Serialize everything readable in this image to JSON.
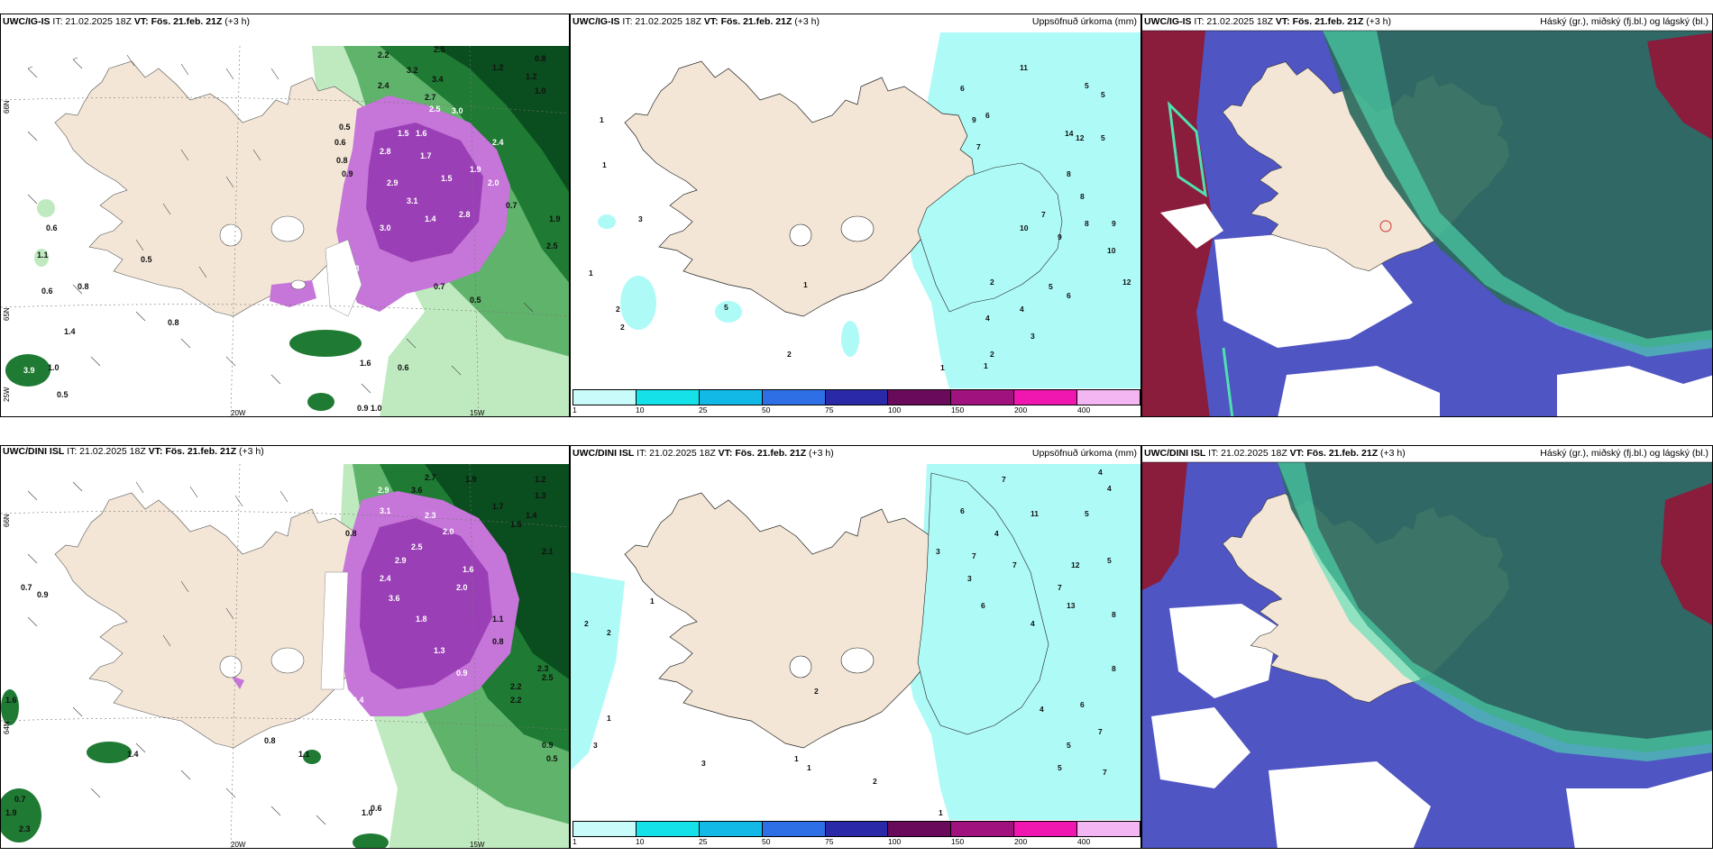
{
  "colors": {
    "land": "#f3e6d6",
    "sea": "#ffffff",
    "precip_light": "#aefaf7",
    "green_1": "#bfeabf",
    "green_2": "#5fb36a",
    "green_3": "#1f7a33",
    "green_4": "#0a4d1e",
    "magenta_1": "#c675d9",
    "magenta_2": "#9a3fb5",
    "cloud_high": "#2e6a5e",
    "cloud_mid": "#4f55c2",
    "cloud_low": "#8a1c3c",
    "cloud_edge": "#4fe0b0"
  },
  "colorbar": {
    "ticks": [
      "1",
      "10",
      "25",
      "50",
      "75",
      "100",
      "150",
      "200",
      "400"
    ],
    "colors": [
      "#c8fbf9",
      "#14e2e8",
      "#12b8e6",
      "#2f6fe6",
      "#2a2aa8",
      "#6a0a5a",
      "#a0127e",
      "#f016b0",
      "#f4b6f2"
    ]
  },
  "axes": {
    "lon_20": "20W",
    "lon_15": "15W",
    "lat_66": "66N",
    "lat_64": "64N",
    "lon_25": "25W",
    "lat_65": "65N"
  },
  "row1": {
    "left": {
      "model": "UWC/IG-IS",
      "it": "IT: 21.02.2025 18Z",
      "vt": "VT: Fös. 21.feb. 21Z",
      "lead": "(+3 h)",
      "numbers": [
        "2.2",
        "2.5",
        "3.2",
        "3.4",
        "2.4",
        "2.7",
        "1.2",
        "0.8",
        "1.2",
        "1.0",
        "0.5",
        "0.6",
        "0.8",
        "0.9",
        "2.5",
        "3.0",
        "1.6",
        "1.5",
        "2.8",
        "1.7",
        "2.4",
        "1.9",
        "2.9",
        "1.5",
        "2.8",
        "1.4",
        "0.3",
        "3.1",
        "2.0",
        "0.7",
        "3.0",
        "0.5",
        "1.1",
        "0.5",
        "0.6",
        "0.8",
        "1.4",
        "3.9",
        "1.0",
        "0.6",
        "0.8",
        "0.9",
        "1.0",
        "1.9",
        "2.5",
        "0.7",
        "0.6",
        "0.5",
        "1.6"
      ]
    },
    "center": {
      "model": "UWC/IG-IS",
      "it": "IT: 21.02.2025 18Z",
      "vt": "VT: Fös. 21.feb. 21Z",
      "lead": "(+3 h)",
      "right_title": "Uppsöfnuð úrkoma (mm)",
      "numbers": [
        "11",
        "5",
        "5",
        "6",
        "8",
        "9",
        "12",
        "6",
        "7",
        "9",
        "14",
        "5",
        "10",
        "8",
        "12",
        "4",
        "2",
        "3",
        "5",
        "6",
        "1",
        "2",
        "2",
        "2",
        "1",
        "3",
        "1",
        "1",
        "1",
        "1",
        "2",
        "5",
        "7",
        "8",
        "9",
        "10",
        "4"
      ]
    },
    "right": {
      "model": "UWC/IG-IS",
      "it": "IT: 21.02.2025 18Z",
      "vt": "VT: Fös. 21.feb. 21Z",
      "lead": "(+3 h)",
      "right_title": "Háský (gr.), miðský (fj.bl.) og lágský (bl.)"
    }
  },
  "row2": {
    "left": {
      "model": "UWC/DINI ISL",
      "it": "IT: 21.02.2025 18Z",
      "vt": "VT: Fös. 21.feb. 21Z",
      "lead": "(+3 h)",
      "numbers": [
        "2.7",
        "3.6",
        "2.9",
        "1.2",
        "1.9",
        "1.3",
        "3.1",
        "2.3",
        "2.0",
        "1.7",
        "1.4",
        "0.8",
        "1.5",
        "2.1",
        "2.5",
        "2.9",
        "1.6",
        "2.4",
        "2.0",
        "0.6",
        "3.6",
        "1.8",
        "1.3",
        "0.9",
        "2.2",
        "2.3",
        "1.1",
        "0.4",
        "0.7",
        "0.9",
        "0.8",
        "0.6",
        "1.6",
        "1.9",
        "2.3",
        "0.7",
        "0.8",
        "1.1",
        "0.5",
        "0.9",
        "1.4",
        "1.0",
        "2.5",
        "2.2"
      ]
    },
    "center": {
      "model": "UWC/DINI ISL",
      "it": "IT: 21.02.2025 18Z",
      "vt": "VT: Fös. 21.feb. 21Z",
      "lead": "(+3 h)",
      "right_title": "Uppsöfnuð úrkoma (mm)",
      "numbers": [
        "4",
        "4",
        "7",
        "6",
        "5",
        "3",
        "7",
        "4",
        "11",
        "12",
        "5",
        "7",
        "8",
        "7",
        "13",
        "6",
        "4",
        "8",
        "5",
        "3",
        "2",
        "2",
        "1",
        "2",
        "3",
        "1",
        "1",
        "1",
        "1",
        "2",
        "3",
        "7",
        "4",
        "6",
        "5",
        "7"
      ]
    },
    "right": {
      "model": "UWC/DINI ISL",
      "it": "IT: 21.02.2025 18Z",
      "vt": "VT: Fös. 21.feb. 21Z",
      "lead": "(+3 h)",
      "right_title": "Háský (gr.), miðský (fj.bl.) og lágský (bl.)"
    }
  }
}
